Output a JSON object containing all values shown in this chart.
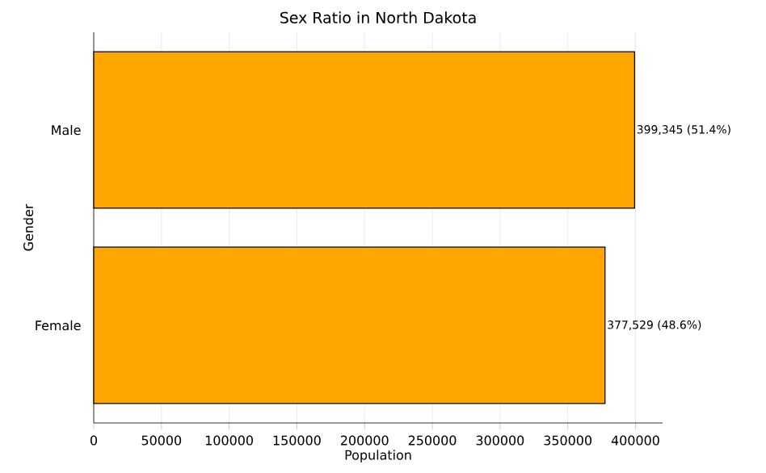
{
  "chart_data": {
    "type": "bar",
    "orientation": "horizontal",
    "title": "Sex Ratio in North Dakota",
    "xlabel": "Population",
    "ylabel": "Gender",
    "categories": [
      "Male",
      "Female"
    ],
    "values": [
      399345,
      377529
    ],
    "color": "#ffa500",
    "value_labels": [
      "399,345 (51.4%)",
      "377,529 (48.6%)"
    ],
    "xlim": [
      0,
      420000
    ],
    "xticks": [
      0,
      50000,
      100000,
      150000,
      200000,
      250000,
      300000,
      350000,
      400000
    ],
    "grid": "x"
  }
}
